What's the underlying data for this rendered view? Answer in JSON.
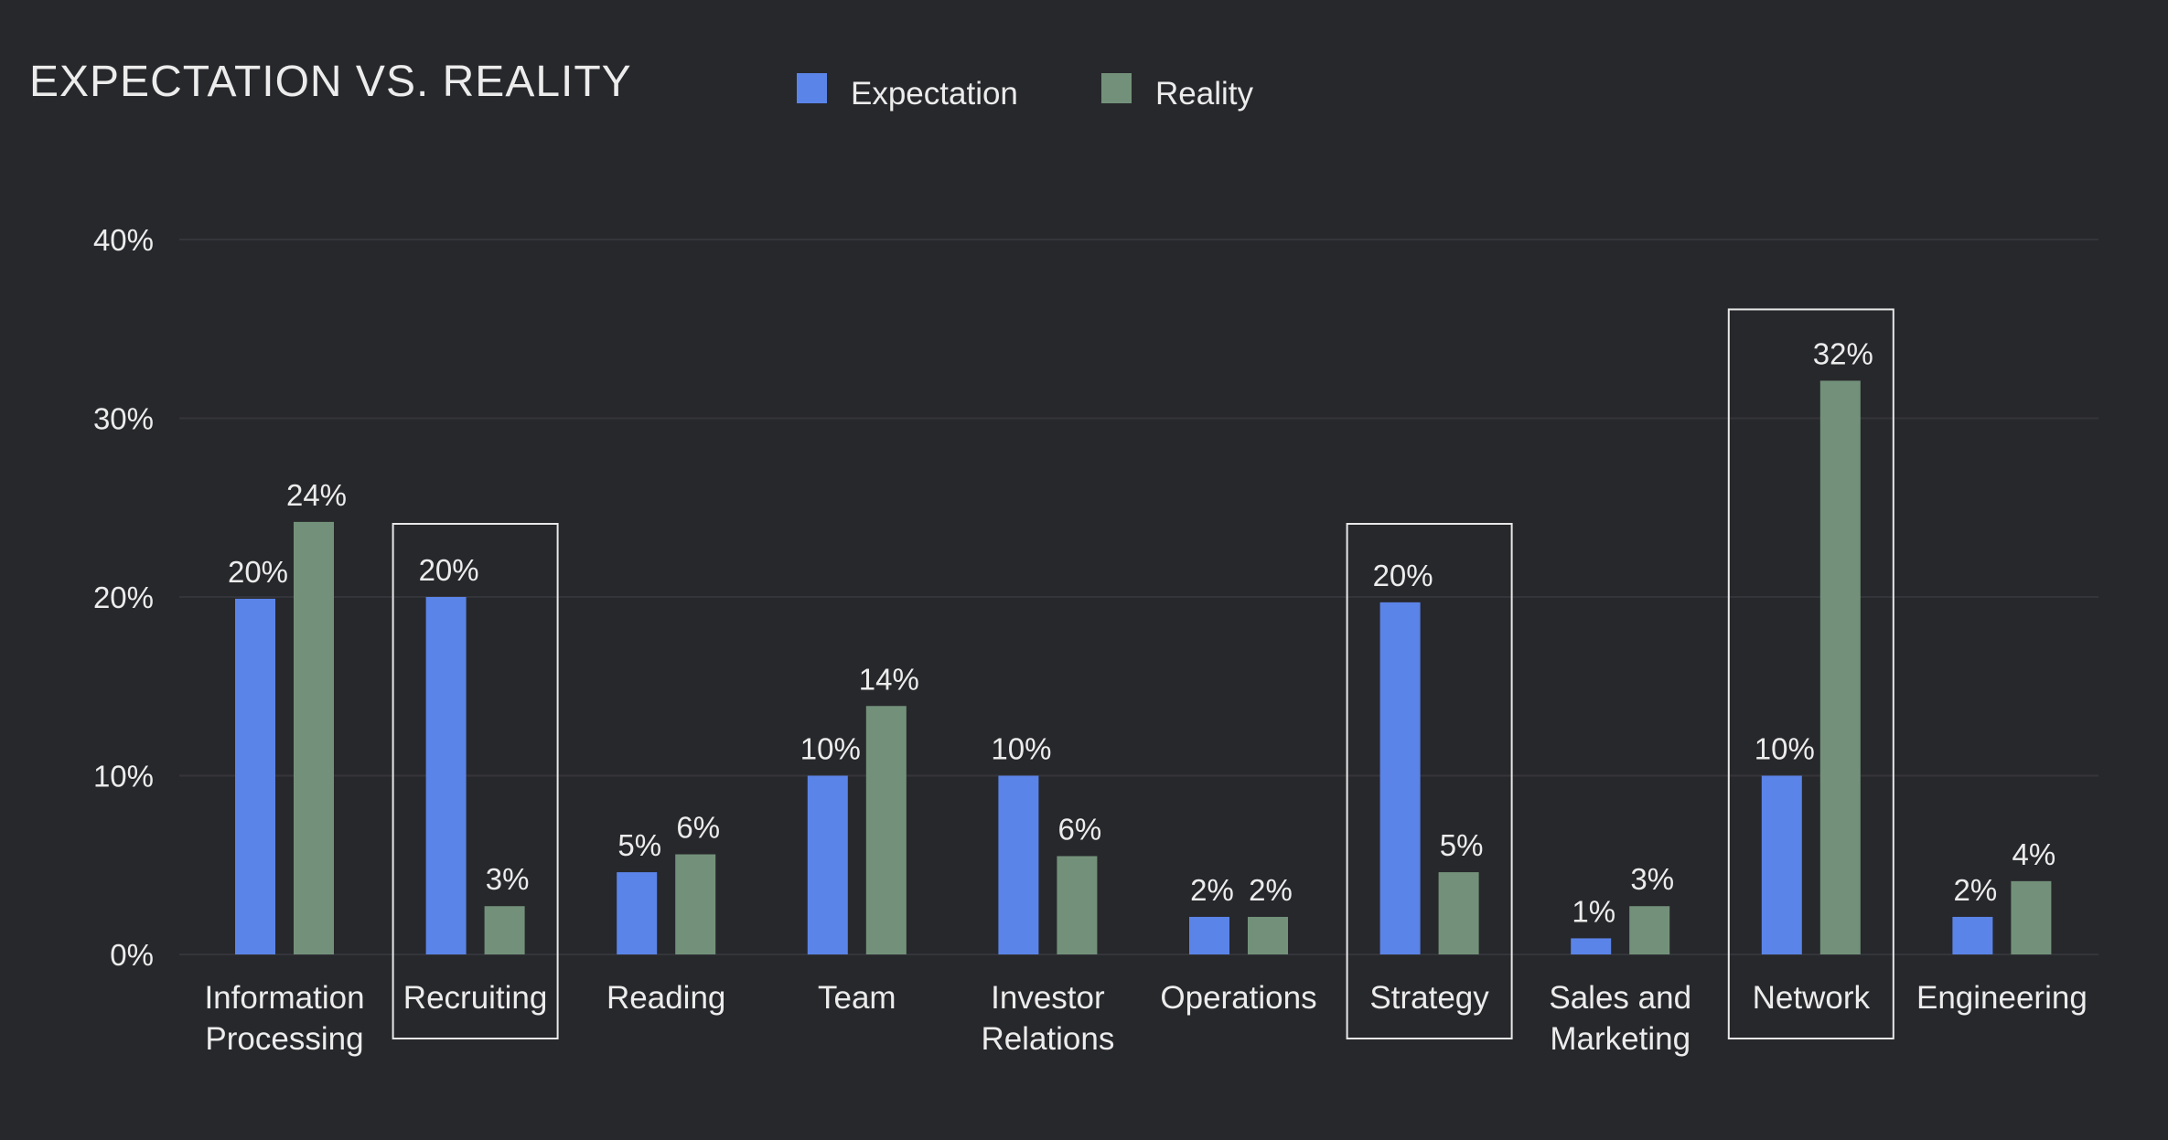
{
  "chart_data": {
    "type": "bar",
    "title": "EXPECTATION VS. REALITY",
    "xlabel": "",
    "ylabel": "",
    "ylim": [
      0,
      40
    ],
    "yticks": [
      "0%",
      "10%",
      "20%",
      "30%",
      "40%"
    ],
    "ytick_values": [
      0,
      10,
      20,
      30,
      40
    ],
    "grid": true,
    "legend_placement": "top",
    "categories": [
      [
        "Information",
        "Processing"
      ],
      [
        "Recruiting"
      ],
      [
        "Reading"
      ],
      [
        "Team"
      ],
      [
        "Investor",
        "Relations"
      ],
      [
        "Operations"
      ],
      [
        "Strategy"
      ],
      [
        "Sales and",
        "Marketing"
      ],
      [
        "Network"
      ],
      [
        "Engineering"
      ]
    ],
    "highlighted_categories": [
      "Recruiting",
      "Strategy",
      "Network"
    ],
    "series": [
      {
        "name": "Expectation",
        "color": "#5b84e8",
        "values": [
          19.9,
          20,
          4.6,
          10,
          10,
          2.1,
          19.7,
          0.9,
          10,
          2.1
        ],
        "labels": [
          "20%",
          "20%",
          "5%",
          "10%",
          "10%",
          "2%",
          "20%",
          "1%",
          "10%",
          "2%"
        ]
      },
      {
        "name": "Reality",
        "color": "#73917a",
        "values": [
          24.2,
          2.7,
          5.6,
          13.9,
          5.5,
          2.1,
          4.6,
          2.7,
          32.1,
          4.1
        ],
        "labels": [
          "24%",
          "3%",
          "6%",
          "14%",
          "6%",
          "2%",
          "5%",
          "3%",
          "32%",
          "4%"
        ]
      }
    ],
    "colors": {
      "background": "#27282c",
      "grid": "#34353a",
      "text": "#ececec",
      "highlight_box": "#e8e8e8"
    }
  }
}
